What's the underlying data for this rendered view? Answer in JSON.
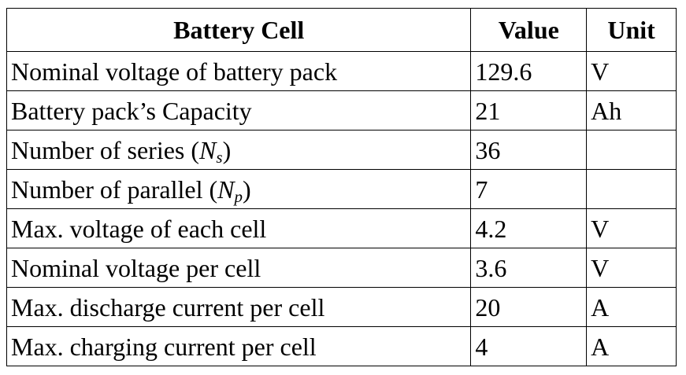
{
  "table": {
    "header": [
      "Battery Cell",
      "Value",
      "Unit"
    ],
    "rows": [
      [
        "Nominal voltage of battery pack",
        129.6,
        "V"
      ],
      [
        "Battery pack’s Capacity",
        21,
        "Ah"
      ],
      [
        {
          "text": "Number of series (",
          "var": "N",
          "sub": "s",
          "end": ")"
        },
        36,
        null
      ],
      [
        {
          "text": "Number of parallel (",
          "var": "N",
          "sub": "p",
          "end": ")"
        },
        7,
        null
      ],
      [
        "Max. voltage of each cell",
        4.2,
        "V"
      ],
      [
        "Nominal voltage per cell",
        3.6,
        "V"
      ],
      [
        "Max. discharge current per cell",
        20,
        "A"
      ],
      [
        "Max. charging current per cell",
        4,
        "A"
      ]
    ]
  }
}
